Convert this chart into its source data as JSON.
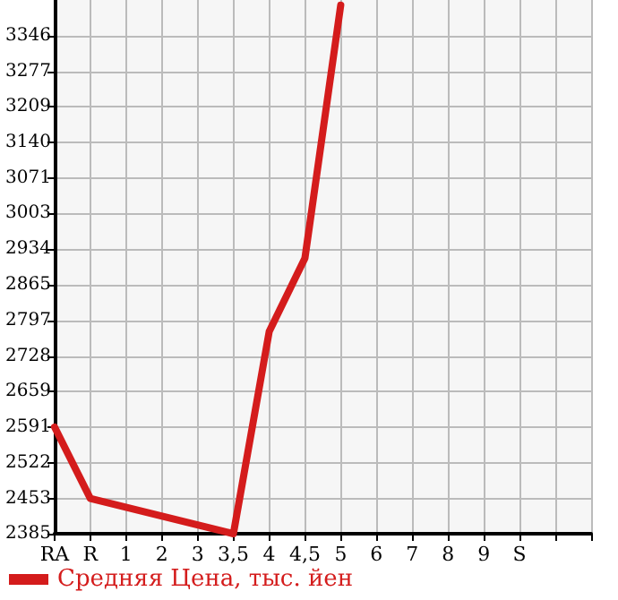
{
  "chart_data": {
    "type": "line",
    "categories": [
      "RA",
      "R",
      "1",
      "2",
      "3",
      "3,5",
      "4",
      "4,5",
      "5",
      "6",
      "7",
      "8",
      "9",
      "S",
      null,
      null
    ],
    "series": [
      {
        "name": "Средняя Цена, тыс. йен",
        "color": "#d41c1c",
        "values": [
          2591,
          2453,
          null,
          null,
          null,
          2385,
          2775,
          2917,
          3405,
          null,
          null,
          null,
          null,
          null,
          null,
          null
        ]
      }
    ],
    "ylim": [
      2385,
      3415
    ],
    "yticks": [
      2385,
      2453,
      2522,
      2591,
      2659,
      2728,
      2797,
      2865,
      2934,
      3003,
      3071,
      3140,
      3209,
      3277,
      3346
    ],
    "grid": true,
    "legend": "bottom left",
    "marker": "none",
    "line_style": "solid"
  }
}
